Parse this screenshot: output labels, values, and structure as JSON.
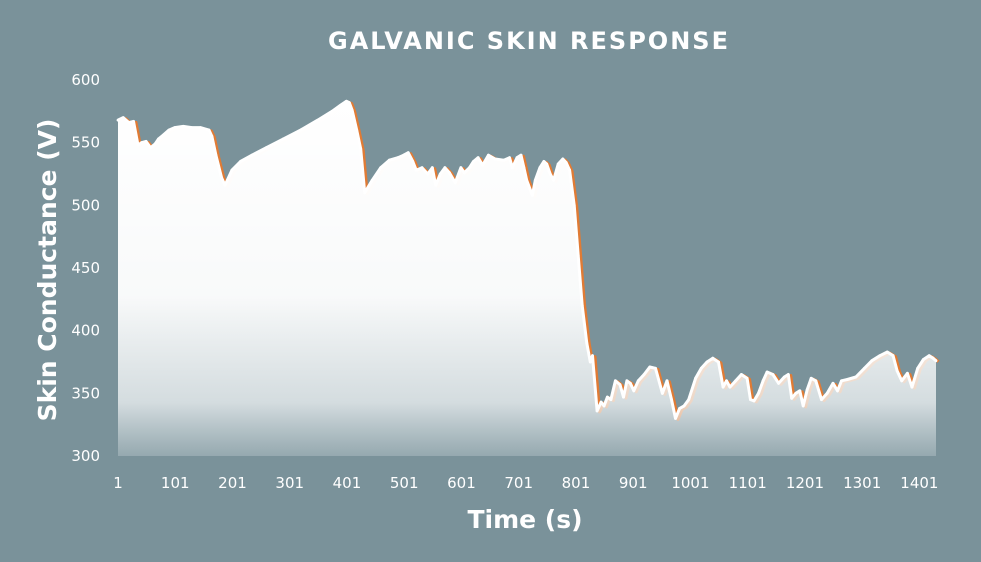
{
  "chart_data": {
    "type": "area",
    "title": "GALVANIC SKIN RESPONSE",
    "xlabel": "Time (s)",
    "ylabel": "Skin Conductance (V)",
    "ylim": [
      300,
      600
    ],
    "xlim": [
      1,
      1430
    ],
    "y_ticks": [
      "300",
      "350",
      "400",
      "450",
      "500",
      "550",
      "600"
    ],
    "x_ticks": [
      "1",
      "101",
      "201",
      "301",
      "401",
      "501",
      "601",
      "701",
      "801",
      "901",
      "1001",
      "1101",
      "1201",
      "1301",
      "1401"
    ],
    "grid": false,
    "legend": "none",
    "colors": {
      "background": "#7a929a",
      "fill": "#ffffff",
      "line": "#e07b35",
      "text": "#ffffff"
    },
    "series": [
      {
        "x": [
          1,
          10,
          20,
          28,
          36,
          42,
          50,
          58,
          66,
          72,
          80,
          90,
          100,
          115,
          130,
          145,
          160,
          165,
          172,
          182,
          188,
          200,
          215,
          235,
          260,
          290,
          320,
          350,
          375,
          390,
          400,
          405,
          410,
          418,
          425,
          432,
          445,
          460,
          475,
          490,
          500,
          508,
          516,
          522,
          532,
          542,
          550,
          556,
          564,
          572,
          580,
          590,
          600,
          606,
          615,
          622,
          630,
          638,
          648,
          660,
          675,
          685,
          690,
          698,
          705,
          710,
          715,
          725,
          730,
          738,
          745,
          750,
          756,
          762,
          770,
          778,
          784,
          790,
          798,
          805,
          812,
          820,
          826,
          830,
          838,
          845,
          850,
          856,
          862,
          870,
          878,
          884,
          890,
          896,
          902,
          910,
          920,
          930,
          940,
          952,
          960,
          968,
          975,
          982,
          990,
          998,
          1010,
          1020,
          1030,
          1040,
          1050,
          1058,
          1064,
          1070,
          1080,
          1090,
          1100,
          1106,
          1112,
          1120,
          1128,
          1135,
          1145,
          1155,
          1165,
          1172,
          1178,
          1185,
          1192,
          1198,
          1205,
          1212,
          1220,
          1230,
          1240,
          1250,
          1258,
          1265,
          1275,
          1290,
          1305,
          1318,
          1332,
          1345,
          1355,
          1362,
          1370,
          1380,
          1388,
          1398,
          1408,
          1418,
          1425,
          1430
        ],
        "y": [
          568,
          570,
          566,
          567,
          548,
          550,
          551,
          546,
          549,
          553,
          556,
          560,
          562,
          563,
          562,
          562,
          560,
          555,
          540,
          522,
          516,
          528,
          535,
          540,
          546,
          553,
          560,
          568,
          575,
          580,
          583,
          582,
          576,
          560,
          545,
          510,
          520,
          530,
          536,
          538,
          540,
          542,
          535,
          528,
          530,
          525,
          530,
          516,
          525,
          530,
          526,
          518,
          530,
          526,
          530,
          535,
          538,
          532,
          540,
          537,
          536,
          538,
          530,
          538,
          540,
          530,
          520,
          508,
          520,
          530,
          535,
          533,
          525,
          520,
          533,
          537,
          534,
          528,
          500,
          460,
          420,
          390,
          375,
          380,
          336,
          343,
          340,
          347,
          345,
          360,
          357,
          347,
          360,
          358,
          352,
          360,
          365,
          371,
          370,
          350,
          360,
          345,
          330,
          338,
          340,
          345,
          362,
          370,
          375,
          378,
          375,
          355,
          360,
          355,
          360,
          365,
          362,
          345,
          344,
          350,
          360,
          367,
          365,
          358,
          363,
          365,
          346,
          350,
          352,
          340,
          353,
          362,
          360,
          345,
          350,
          358,
          352,
          360,
          361,
          363,
          370,
          376,
          380,
          383,
          380,
          368,
          360,
          366,
          355,
          370,
          377,
          380,
          378,
          376
        ]
      }
    ]
  }
}
